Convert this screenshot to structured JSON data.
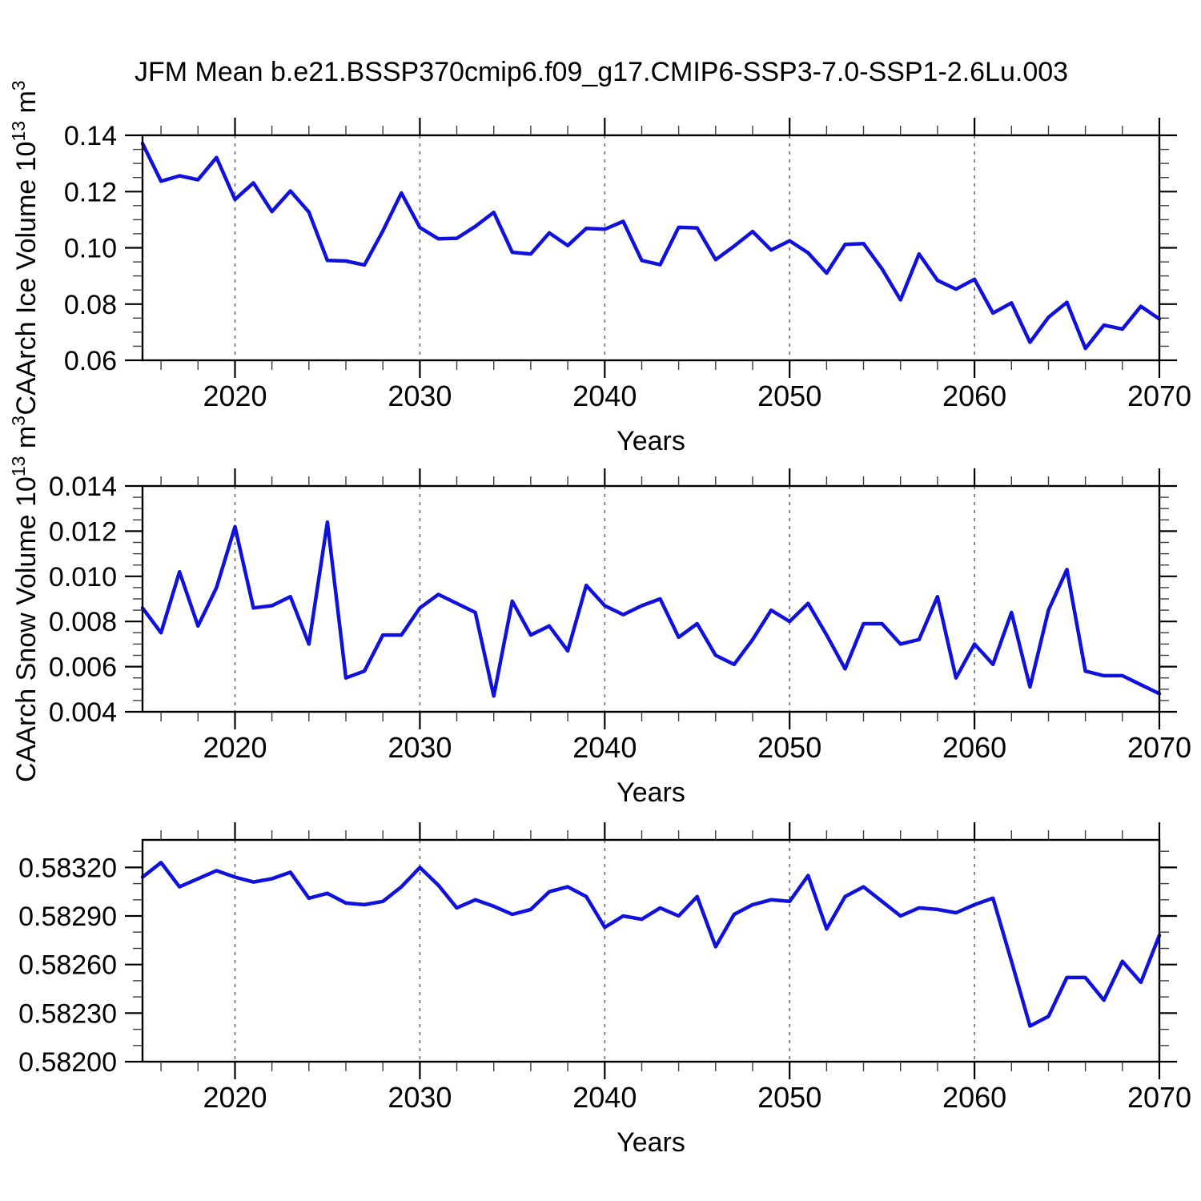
{
  "title": "JFM Mean b.e21.BSSP370cmip6.f09_g17.CMIP6-SSP3-7.0-SSP1-2.6Lu.003",
  "colors": {
    "line": "#1111dd",
    "grid": "#7d7d7d",
    "axis": "#000000",
    "background": "#ffffff"
  },
  "chart_data": [
    {
      "type": "line",
      "name": "caarch-ice-volume",
      "ylabel_parts": [
        {
          "t": "CAArch Ice Volume 10"
        },
        {
          "t": "13",
          "sup": true
        },
        {
          "t": " m",
          "sup": false
        },
        {
          "t": "3",
          "sup": true
        }
      ],
      "xlabel": "Years",
      "x_start": 2015,
      "x_end": 2070,
      "x_step": 1,
      "xticks": [
        2020,
        2030,
        2040,
        2050,
        2060,
        2070
      ],
      "xtick_labels": [
        "2020",
        "2030",
        "2040",
        "2050",
        "2060",
        "2070"
      ],
      "x_minor_every": 2,
      "grid_years": [
        2020,
        2030,
        2040,
        2050,
        2060
      ],
      "ylim": [
        0.06,
        0.14
      ],
      "y_frame_top": 0.14,
      "yticks": [
        0.06,
        0.08,
        0.1,
        0.12,
        0.14
      ],
      "ytick_labels": [
        "0.06",
        "0.08",
        "0.10",
        "0.12",
        "0.14"
      ],
      "y_minor_step": 0.005,
      "values": [
        0.1371,
        0.1237,
        0.1256,
        0.1242,
        0.1321,
        0.1172,
        0.1231,
        0.1129,
        0.1202,
        0.1127,
        0.0955,
        0.0953,
        0.0939,
        0.106,
        0.1195,
        0.1072,
        0.1032,
        0.1034,
        0.1076,
        0.1126,
        0.0984,
        0.0978,
        0.1053,
        0.1008,
        0.1069,
        0.1066,
        0.1094,
        0.0955,
        0.094,
        0.1073,
        0.1071,
        0.0958,
        0.1006,
        0.1058,
        0.0992,
        0.1025,
        0.0982,
        0.091,
        0.1012,
        0.1015,
        0.0925,
        0.0815,
        0.0978,
        0.0884,
        0.0853,
        0.0888,
        0.0768,
        0.0804,
        0.0664,
        0.0753,
        0.0806,
        0.0642,
        0.0725,
        0.0711,
        0.0792,
        0.0747
      ]
    },
    {
      "type": "line",
      "name": "caarch-snow-volume",
      "ylabel_parts": [
        {
          "t": "CAArch Snow Volume 10"
        },
        {
          "t": "13",
          "sup": true
        },
        {
          "t": " m",
          "sup": false
        },
        {
          "t": "3",
          "sup": true
        }
      ],
      "xlabel": "Years",
      "x_start": 2015,
      "x_end": 2070,
      "x_step": 1,
      "xticks": [
        2020,
        2030,
        2040,
        2050,
        2060,
        2070
      ],
      "xtick_labels": [
        "2020",
        "2030",
        "2040",
        "2050",
        "2060",
        "2070"
      ],
      "x_minor_every": 2,
      "grid_years": [
        2020,
        2030,
        2040,
        2050,
        2060
      ],
      "ylim": [
        0.004,
        0.014
      ],
      "y_frame_top": 0.014,
      "yticks": [
        0.004,
        0.006,
        0.008,
        0.01,
        0.012,
        0.014
      ],
      "ytick_labels": [
        "0.004",
        "0.006",
        "0.008",
        "0.010",
        "0.012",
        "0.014"
      ],
      "y_minor_step": 0.0005,
      "values": [
        0.0086,
        0.0075,
        0.0102,
        0.0078,
        0.0095,
        0.0122,
        0.0086,
        0.0087,
        0.0091,
        0.007,
        0.0124,
        0.0055,
        0.0058,
        0.0074,
        0.0074,
        0.0086,
        0.0092,
        0.0088,
        0.0084,
        0.0047,
        0.0089,
        0.0074,
        0.0078,
        0.0067,
        0.0096,
        0.0087,
        0.0083,
        0.0087,
        0.009,
        0.0073,
        0.0079,
        0.0065,
        0.0061,
        0.0072,
        0.0085,
        0.008,
        0.0088,
        0.0074,
        0.0059,
        0.0079,
        0.0079,
        0.007,
        0.0072,
        0.0091,
        0.0055,
        0.007,
        0.0061,
        0.0084,
        0.0051,
        0.0085,
        0.0103,
        0.0058,
        0.0056,
        0.0056,
        0.0052,
        0.0048
      ]
    },
    {
      "type": "line",
      "name": "third-series",
      "ylabel_parts": [],
      "xlabel": "Years",
      "x_start": 2015,
      "x_end": 2070,
      "x_step": 1,
      "xticks": [
        2020,
        2030,
        2040,
        2050,
        2060,
        2070
      ],
      "xtick_labels": [
        "2020",
        "2030",
        "2040",
        "2050",
        "2060",
        "2070"
      ],
      "x_minor_every": 2,
      "grid_years": [
        2020,
        2030,
        2040,
        2050,
        2060
      ],
      "ylim": [
        0.582,
        0.5832
      ],
      "y_frame_top": 0.58337,
      "yticks": [
        0.582,
        0.5823,
        0.5826,
        0.5829,
        0.5832
      ],
      "ytick_labels": [
        "0.58200",
        "0.58230",
        "0.58260",
        "0.58290",
        "0.58320"
      ],
      "y_minor_step": 0.0001,
      "values": [
        0.58314,
        0.58323,
        0.58308,
        0.58313,
        0.58318,
        0.58314,
        0.58311,
        0.58313,
        0.58317,
        0.58301,
        0.58304,
        0.58298,
        0.58297,
        0.58299,
        0.58308,
        0.5832,
        0.58309,
        0.58295,
        0.583,
        0.58296,
        0.58291,
        0.58294,
        0.58305,
        0.58308,
        0.58302,
        0.58283,
        0.5829,
        0.58288,
        0.58295,
        0.5829,
        0.58302,
        0.58271,
        0.58291,
        0.58297,
        0.583,
        0.58299,
        0.58315,
        0.58282,
        0.58302,
        0.58308,
        0.58299,
        0.5829,
        0.58295,
        0.58294,
        0.58292,
        0.58297,
        0.58301,
        0.58262,
        0.58222,
        0.58228,
        0.58252,
        0.58252,
        0.58238,
        0.58262,
        0.58249,
        0.58278
      ]
    }
  ]
}
